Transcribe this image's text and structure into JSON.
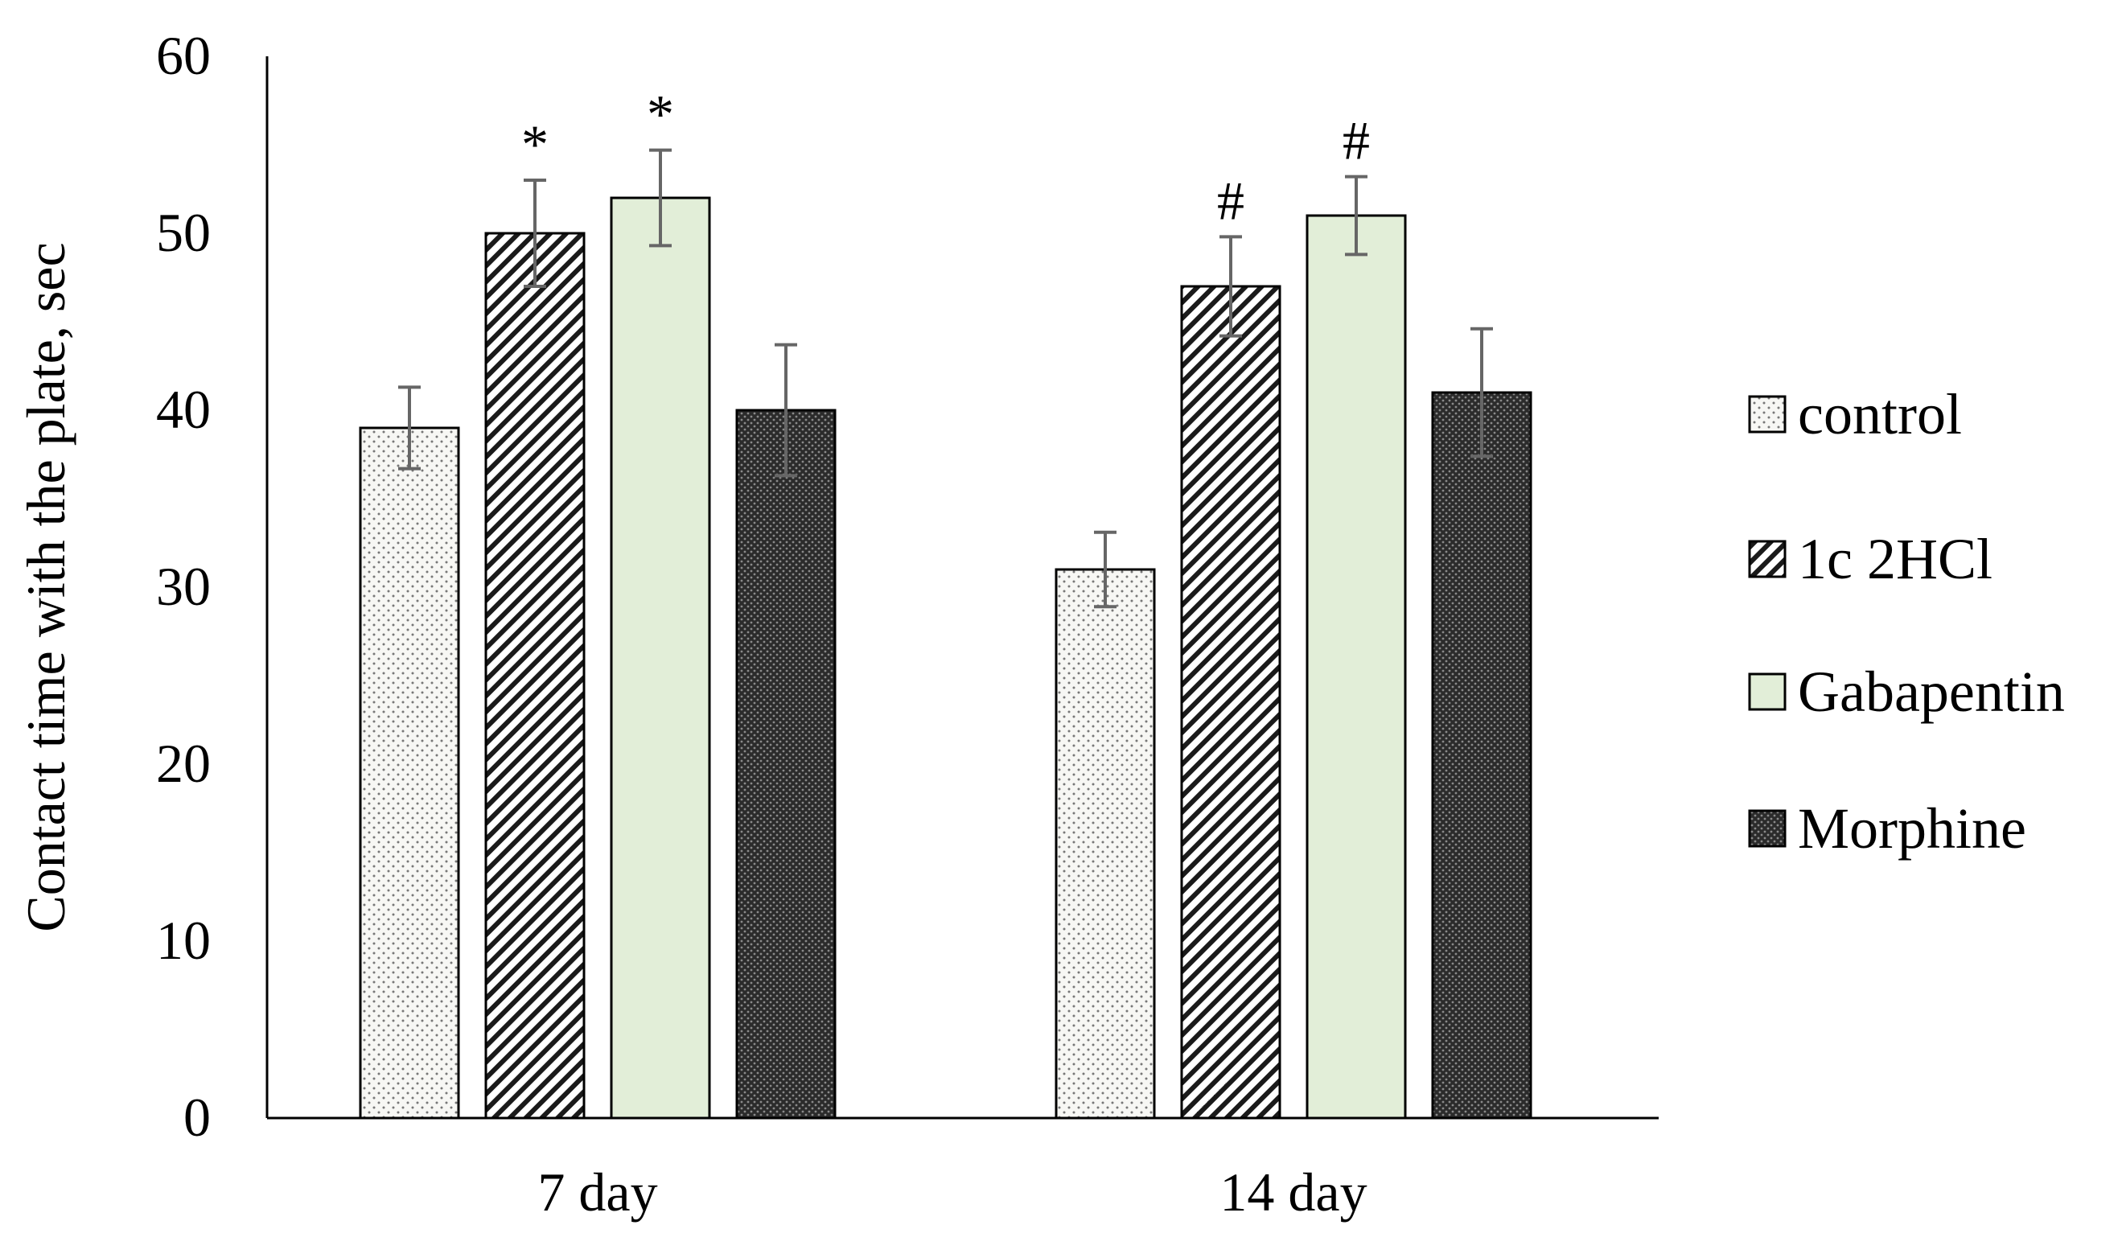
{
  "chart_data": {
    "type": "bar",
    "title": "",
    "xlabel": "",
    "ylabel": "Contact time with the plate, sec",
    "ylim": [
      0,
      60
    ],
    "yticks": [
      0,
      10,
      20,
      30,
      40,
      50,
      60
    ],
    "categories": [
      "7 day",
      "14 day"
    ],
    "series": [
      {
        "name": "control",
        "values": [
          39,
          31
        ],
        "errors": [
          2.3,
          2.1
        ],
        "annotations": [
          "",
          ""
        ],
        "fill": "#f7f7f4",
        "pattern": "dots"
      },
      {
        "name": "1c 2HCl",
        "values": [
          50,
          47
        ],
        "errors": [
          3.0,
          2.8
        ],
        "annotations": [
          "*",
          "#"
        ],
        "fill": "#ffffff",
        "pattern": "diagonal"
      },
      {
        "name": "Gabapentin",
        "values": [
          52,
          51
        ],
        "errors": [
          2.7,
          2.2
        ],
        "annotations": [
          "*",
          "#"
        ],
        "fill": "#e2eed8",
        "pattern": "none"
      },
      {
        "name": "Morphine",
        "values": [
          40,
          41
        ],
        "errors": [
          3.7,
          3.6
        ],
        "annotations": [
          "",
          ""
        ],
        "fill": "#3a3a3a",
        "pattern": "dense"
      }
    ],
    "grid": false,
    "legend_position": "right"
  }
}
